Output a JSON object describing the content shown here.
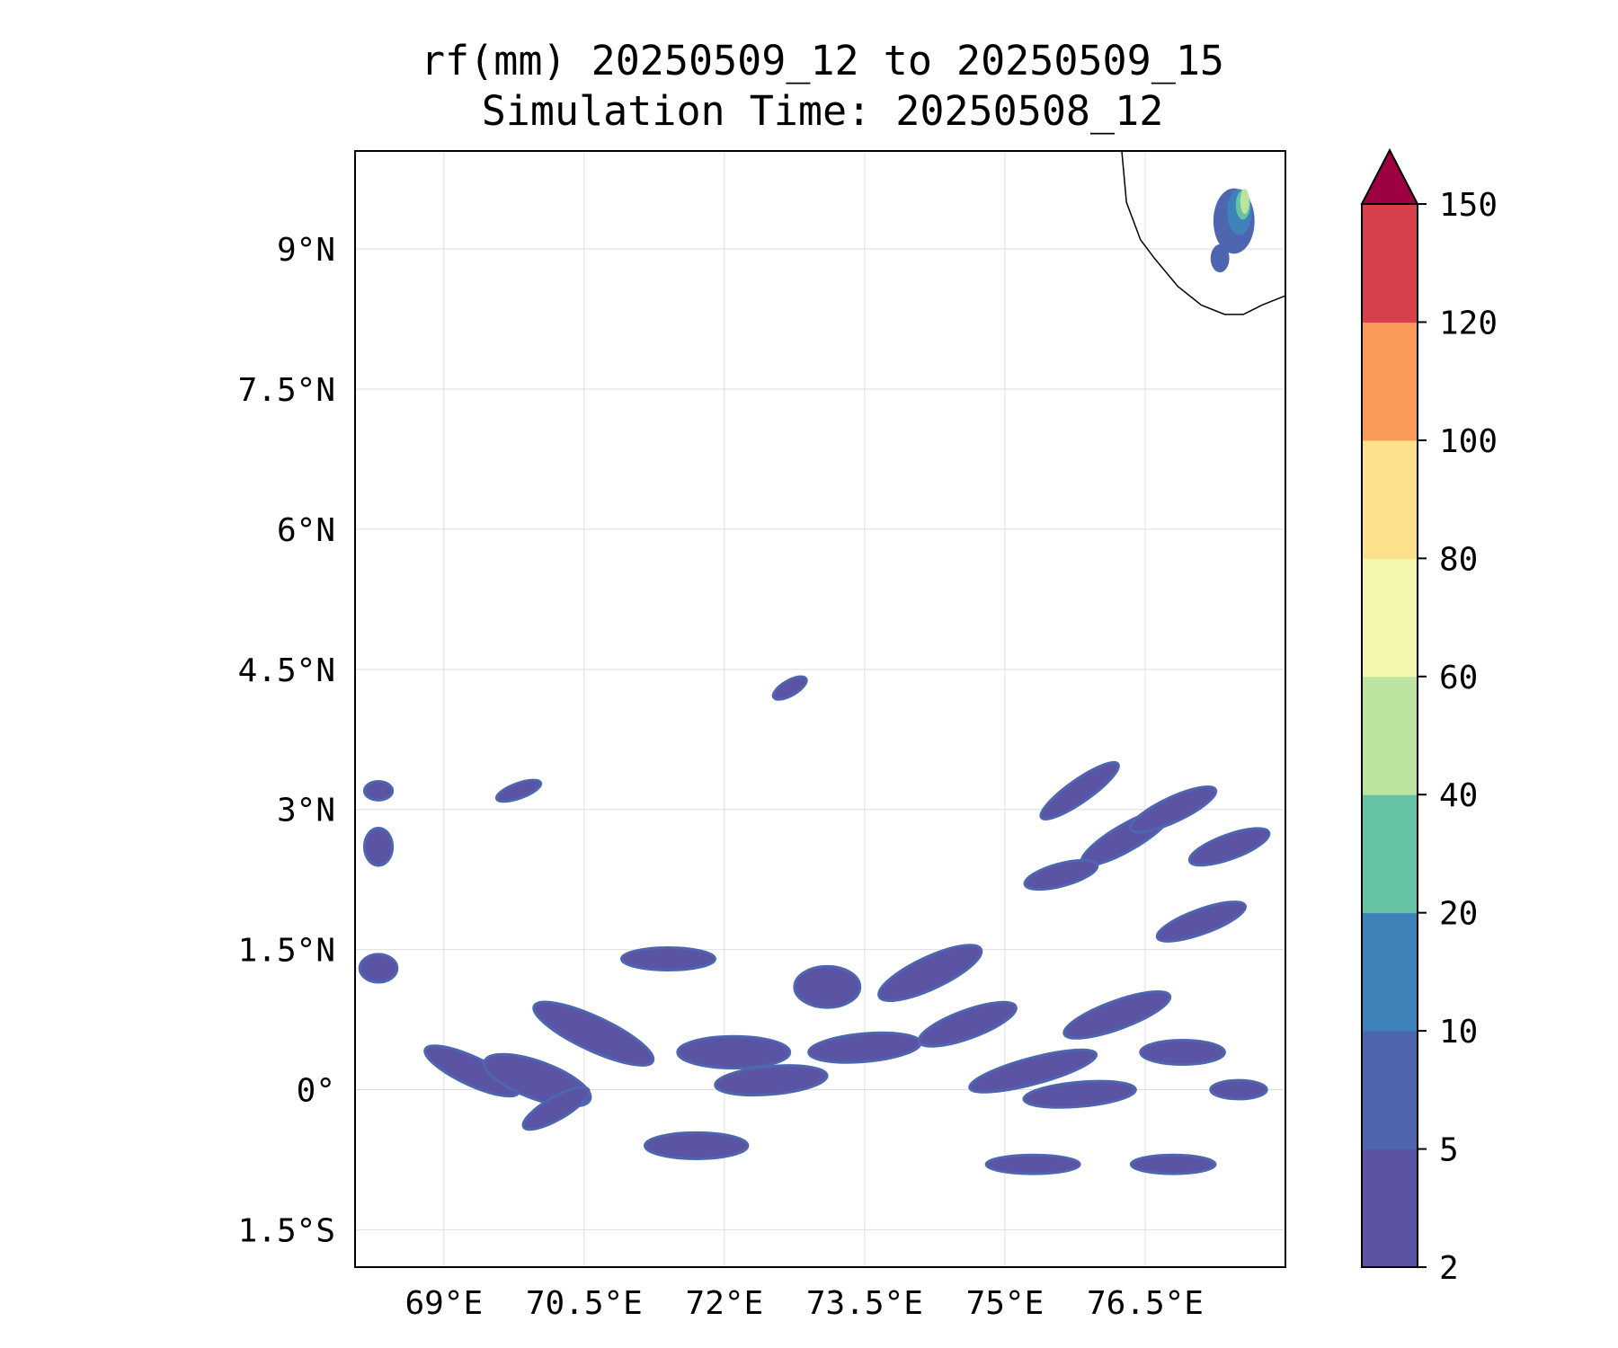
{
  "title": {
    "line1": "rf(mm) 20250509_12 to 20250509_15",
    "line2": "Simulation Time: 20250508_12"
  },
  "map": {
    "extent": {
      "lon_min": 68.05,
      "lon_max": 78.0,
      "lat_min": -1.9,
      "lat_max": 10.05
    },
    "lon_ticks": [
      {
        "value": 69.0,
        "label": "69°E"
      },
      {
        "value": 70.5,
        "label": "70.5°E"
      },
      {
        "value": 72.0,
        "label": "72°E"
      },
      {
        "value": 73.5,
        "label": "73.5°E"
      },
      {
        "value": 75.0,
        "label": "75°E"
      },
      {
        "value": 76.5,
        "label": "76.5°E"
      }
    ],
    "lat_ticks": [
      {
        "value": 9.0,
        "label": "9°N"
      },
      {
        "value": 7.5,
        "label": "7.5°N"
      },
      {
        "value": 6.0,
        "label": "6°N"
      },
      {
        "value": 4.5,
        "label": "4.5°N"
      },
      {
        "value": 3.0,
        "label": "3°N"
      },
      {
        "value": 1.5,
        "label": "1.5°N"
      },
      {
        "value": 0.0,
        "label": "0°"
      },
      {
        "value": -1.5,
        "label": "1.5°S"
      }
    ],
    "gridlines": true,
    "coastline_lonlat": [
      [
        76.25,
        10.05
      ],
      [
        76.3,
        9.5
      ],
      [
        76.45,
        9.1
      ],
      [
        76.6,
        8.9
      ],
      [
        76.85,
        8.6
      ],
      [
        77.1,
        8.4
      ],
      [
        77.35,
        8.3
      ],
      [
        77.55,
        8.3
      ],
      [
        77.75,
        8.4
      ],
      [
        78.0,
        8.5
      ]
    ],
    "rain_blobs": [
      [
        69.3,
        0.2,
        0.55,
        0.15,
        25
      ],
      [
        70.0,
        0.1,
        0.6,
        0.2,
        20
      ],
      [
        70.6,
        0.6,
        0.7,
        0.18,
        25
      ],
      [
        71.4,
        1.4,
        0.5,
        0.12,
        0
      ],
      [
        72.1,
        0.4,
        0.6,
        0.17,
        0
      ],
      [
        72.5,
        0.1,
        0.6,
        0.15,
        -5
      ],
      [
        73.1,
        1.1,
        0.35,
        0.22,
        0
      ],
      [
        73.5,
        0.45,
        0.6,
        0.15,
        -5
      ],
      [
        74.2,
        1.25,
        0.6,
        0.17,
        -25
      ],
      [
        74.6,
        0.7,
        0.55,
        0.15,
        -20
      ],
      [
        75.3,
        0.2,
        0.7,
        0.14,
        -15
      ],
      [
        75.8,
        -0.05,
        0.6,
        0.13,
        -5
      ],
      [
        76.2,
        0.8,
        0.6,
        0.15,
        -20
      ],
      [
        76.9,
        0.4,
        0.45,
        0.13,
        0
      ],
      [
        77.5,
        0.0,
        0.3,
        0.1,
        0
      ],
      [
        75.8,
        3.2,
        0.5,
        0.12,
        -35
      ],
      [
        76.3,
        2.7,
        0.55,
        0.14,
        -30
      ],
      [
        76.8,
        3.0,
        0.5,
        0.13,
        -25
      ],
      [
        77.4,
        2.6,
        0.45,
        0.13,
        -20
      ],
      [
        77.1,
        1.8,
        0.5,
        0.13,
        -20
      ],
      [
        75.6,
        2.3,
        0.4,
        0.12,
        -15
      ],
      [
        68.3,
        2.6,
        0.15,
        0.2,
        0
      ],
      [
        68.3,
        3.2,
        0.15,
        0.1,
        0
      ],
      [
        71.7,
        -0.6,
        0.55,
        0.14,
        0
      ],
      [
        70.2,
        -0.2,
        0.4,
        0.12,
        -30
      ],
      [
        75.3,
        -0.8,
        0.5,
        0.1,
        0
      ],
      [
        76.8,
        -0.8,
        0.45,
        0.1,
        0
      ],
      [
        69.8,
        3.2,
        0.25,
        0.08,
        -20
      ],
      [
        68.3,
        1.3,
        0.2,
        0.15,
        0
      ],
      [
        72.7,
        4.3,
        0.2,
        0.08,
        -30
      ]
    ],
    "heavy_rain": [
      [
        77.45,
        9.3,
        0.22,
        0.35
      ],
      [
        77.3,
        8.9,
        0.1,
        0.15
      ]
    ]
  },
  "colorbar": {
    "levels": [
      2,
      5,
      10,
      20,
      40,
      60,
      80,
      100,
      120,
      150
    ],
    "tick_labels": [
      "2",
      "5",
      "10",
      "20",
      "40",
      "60",
      "80",
      "100",
      "120",
      "150"
    ],
    "colors": [
      "#5b53a4",
      "#4e66af",
      "#3f81b9",
      "#66c2a5",
      "#bce4a0",
      "#f3f8ae",
      "#fde08b",
      "#fa9a58",
      "#d8404e"
    ],
    "extend_color": "#9e0142"
  }
}
